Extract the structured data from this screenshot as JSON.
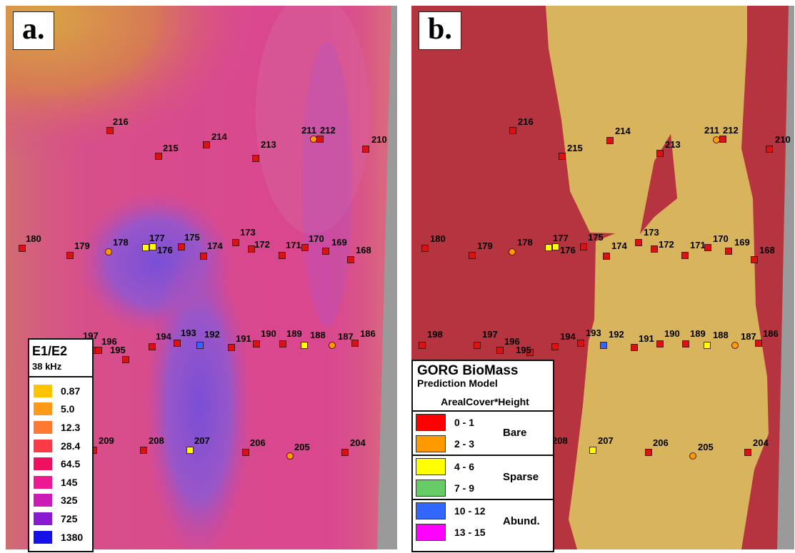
{
  "panel_a": {
    "letter": "a.",
    "legend": {
      "title": "E1/E2",
      "subtitle": "38 kHz",
      "items": [
        {
          "label": "0.87",
          "color": "#ffc400"
        },
        {
          "label": "5.0",
          "color": "#ff9a18"
        },
        {
          "label": "12.3",
          "color": "#ff7a30"
        },
        {
          "label": "28.4",
          "color": "#fa3a44"
        },
        {
          "label": "64.5",
          "color": "#f01060"
        },
        {
          "label": "145",
          "color": "#ee1893"
        },
        {
          "label": "325",
          "color": "#cc1ab4"
        },
        {
          "label": "725",
          "color": "#8a1ad2"
        },
        {
          "label": "1380",
          "color": "#1410e6"
        }
      ]
    }
  },
  "panel_b": {
    "letter": "b.",
    "legend": {
      "title": "GORG  BioMass",
      "subtitle": "Prediction Model",
      "variable": "ArealCover*Height",
      "groups": [
        {
          "name": "Bare",
          "items": [
            {
              "label": "0 - 1",
              "color": "#ff0000"
            },
            {
              "label": "2 - 3",
              "color": "#ff9900"
            }
          ]
        },
        {
          "name": "Sparse",
          "items": [
            {
              "label": "4 - 6",
              "color": "#ffff00"
            },
            {
              "label": "7 - 9",
              "color": "#66cc66"
            }
          ]
        },
        {
          "name": "Abund.",
          "items": [
            {
              "label": "10 - 12",
              "color": "#3366ff"
            },
            {
              "label": "13 - 15",
              "color": "#ff00ff"
            }
          ]
        }
      ]
    }
  },
  "stations": [
    {
      "id": "216",
      "color": "#dd1111",
      "shape": "square"
    },
    {
      "id": "215",
      "color": "#dd1111",
      "shape": "square"
    },
    {
      "id": "214",
      "color": "#dd1111",
      "shape": "square"
    },
    {
      "id": "213",
      "color": "#dd1111",
      "shape": "square"
    },
    {
      "id": "211",
      "color": "#ff9900",
      "shape": "circle"
    },
    {
      "id": "212",
      "color": "#dd1111",
      "shape": "square"
    },
    {
      "id": "210",
      "color": "#dd1111",
      "shape": "square"
    },
    {
      "id": "180",
      "color": "#dd1111",
      "shape": "square"
    },
    {
      "id": "179",
      "color": "#dd1111",
      "shape": "square"
    },
    {
      "id": "178",
      "color": "#ff9900",
      "shape": "circle"
    },
    {
      "id": "177",
      "color": "#ffff00",
      "shape": "square"
    },
    {
      "id": "176",
      "color": "#ffff00",
      "shape": "square"
    },
    {
      "id": "175",
      "color": "#dd1111",
      "shape": "square"
    },
    {
      "id": "174",
      "color": "#dd1111",
      "shape": "square"
    },
    {
      "id": "173",
      "color": "#dd1111",
      "shape": "square"
    },
    {
      "id": "172",
      "color": "#dd1111",
      "shape": "square"
    },
    {
      "id": "171",
      "color": "#dd1111",
      "shape": "square"
    },
    {
      "id": "170",
      "color": "#dd1111",
      "shape": "square"
    },
    {
      "id": "169",
      "color": "#dd1111",
      "shape": "square"
    },
    {
      "id": "168",
      "color": "#dd1111",
      "shape": "square"
    },
    {
      "id": "198",
      "color": "#dd1111",
      "shape": "square"
    },
    {
      "id": "197",
      "color": "#dd1111",
      "shape": "square"
    },
    {
      "id": "196",
      "color": "#dd1111",
      "shape": "square"
    },
    {
      "id": "195",
      "color": "#dd1111",
      "shape": "square"
    },
    {
      "id": "194",
      "color": "#dd1111",
      "shape": "square"
    },
    {
      "id": "193",
      "color": "#dd1111",
      "shape": "square"
    },
    {
      "id": "192",
      "color": "#3366ff",
      "shape": "square"
    },
    {
      "id": "191",
      "color": "#dd1111",
      "shape": "square"
    },
    {
      "id": "190",
      "color": "#dd1111",
      "shape": "square"
    },
    {
      "id": "189",
      "color": "#dd1111",
      "shape": "square"
    },
    {
      "id": "188",
      "color": "#ffff00",
      "shape": "square"
    },
    {
      "id": "187",
      "color": "#ff9900",
      "shape": "circle"
    },
    {
      "id": "186",
      "color": "#dd1111",
      "shape": "square"
    },
    {
      "id": "209",
      "color": "#dd1111",
      "shape": "square"
    },
    {
      "id": "208",
      "color": "#dd1111",
      "shape": "square"
    },
    {
      "id": "207",
      "color": "#ffff00",
      "shape": "square"
    },
    {
      "id": "206",
      "color": "#dd1111",
      "shape": "square"
    },
    {
      "id": "205",
      "color": "#ff9900",
      "shape": "circle"
    },
    {
      "id": "204",
      "color": "#dd1111",
      "shape": "square"
    }
  ],
  "colors": {
    "background_a": "#d9488f",
    "background_b": "#b5343f",
    "sparse_zone": "#d8b45c",
    "nodata": "#9a9a9a"
  }
}
